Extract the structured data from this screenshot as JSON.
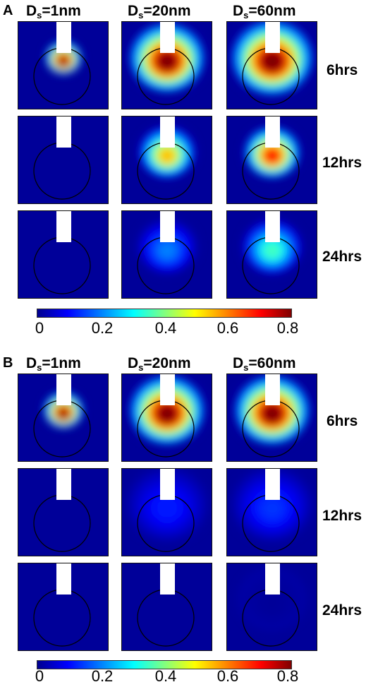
{
  "panels": [
    {
      "letter": "A",
      "columns": [
        {
          "prefix": "D",
          "sub": "s",
          "suffix": "=1nm"
        },
        {
          "prefix": "D",
          "sub": "s",
          "suffix": "=20nm"
        },
        {
          "prefix": "D",
          "sub": "s",
          "suffix": "=60nm"
        }
      ],
      "rows": [
        "6hrs",
        "12hrs",
        "24hrs"
      ],
      "tiles": [
        [
          {
            "level": 0.8,
            "spread": 0.55
          },
          {
            "level": 0.8,
            "spread": 1.15
          },
          {
            "level": 0.8,
            "spread": 1.25
          }
        ],
        [
          {
            "level": 0.0,
            "spread": 0.0
          },
          {
            "level": 0.55,
            "spread": 0.85
          },
          {
            "level": 0.7,
            "spread": 0.85
          }
        ],
        [
          {
            "level": 0.0,
            "spread": 0.0
          },
          {
            "level": 0.2,
            "spread": 0.9
          },
          {
            "level": 0.35,
            "spread": 0.9
          }
        ]
      ]
    },
    {
      "letter": "B",
      "columns": [
        {
          "prefix": "D",
          "sub": "s",
          "suffix": "=1nm"
        },
        {
          "prefix": "D",
          "sub": "s",
          "suffix": "=20nm"
        },
        {
          "prefix": "D",
          "sub": "s",
          "suffix": "=60nm"
        }
      ],
      "rows": [
        "6hrs",
        "12hrs",
        "24hrs"
      ],
      "tiles": [
        [
          {
            "level": 0.8,
            "spread": 0.6
          },
          {
            "level": 0.8,
            "spread": 1.15
          },
          {
            "level": 0.8,
            "spread": 1.15
          }
        ],
        [
          {
            "level": 0.0,
            "spread": 0.0
          },
          {
            "level": 0.12,
            "spread": 1.2
          },
          {
            "level": 0.14,
            "spread": 1.2
          }
        ],
        [
          {
            "level": 0.0,
            "spread": 0.0
          },
          {
            "level": 0.0,
            "spread": 0.0
          },
          {
            "level": 0.02,
            "spread": 1.0
          }
        ]
      ]
    }
  ],
  "colorbar": {
    "ticks": [
      "0",
      "0.2",
      "0.4",
      "0.6",
      "0.8"
    ],
    "min": 0,
    "max": 0.8
  },
  "colors": {
    "background_level": "#1a2a8c",
    "circle": "#000000",
    "probe": "#ffffff"
  }
}
